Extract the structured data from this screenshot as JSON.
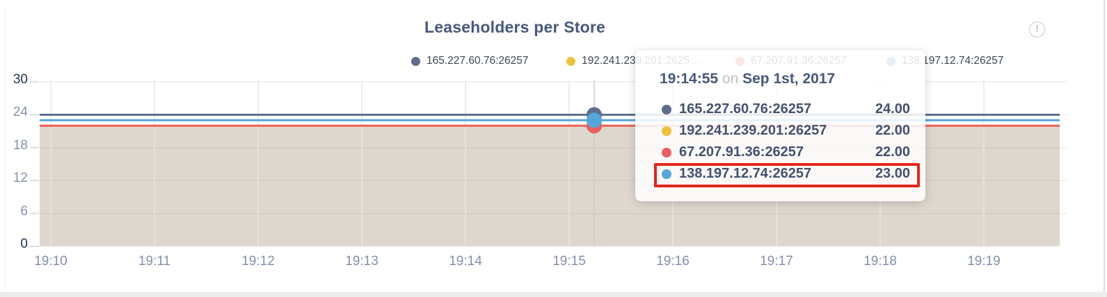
{
  "panel": {
    "title": "Leaseholders per Store",
    "info_icon": "!"
  },
  "legend": {
    "items": [
      {
        "label": "165.227.60.76:26257",
        "color": "#5d6d8d"
      },
      {
        "label": "192.241.239.201:2625…",
        "color": "#eec13d"
      },
      {
        "label": "67.207.91.36:26257",
        "color": "#ea5f5f"
      },
      {
        "label": "138.197.12.74:26257",
        "color": "#55a6da"
      }
    ]
  },
  "tooltip": {
    "time": "19:14:55",
    "on_word": "on",
    "date": "Sep 1st, 2017",
    "highlight_color": "#e5261d",
    "rows": [
      {
        "name": "165.227.60.76:26257",
        "value": "24.00",
        "color": "#5d6d8d",
        "highlighted": false
      },
      {
        "name": "192.241.239.201:26257",
        "value": "22.00",
        "color": "#eec13d",
        "highlighted": false
      },
      {
        "name": "67.207.91.36:26257",
        "value": "22.00",
        "color": "#ea5f5f",
        "highlighted": false
      },
      {
        "name": "138.197.12.74:26257",
        "value": "23.00",
        "color": "#55a6da",
        "highlighted": true
      }
    ]
  },
  "chart_data": {
    "type": "area",
    "title": "Leaseholders per Store",
    "x": [
      "19:10",
      "19:11",
      "19:12",
      "19:13",
      "19:14",
      "19:15",
      "19:16",
      "19:17",
      "19:18",
      "19:19"
    ],
    "y_ticks": [
      0,
      6,
      12,
      18,
      24,
      30
    ],
    "ylim": [
      0,
      30
    ],
    "grid": true,
    "legend_position": "top",
    "fill_color": "#ded7ce",
    "hover_point": {
      "time": "19:14:55",
      "date": "Sep 1st, 2017"
    },
    "series": [
      {
        "name": "165.227.60.76:26257",
        "color": "#5d6d8d",
        "values": [
          24,
          24,
          24,
          24,
          24,
          24,
          24,
          24,
          24,
          24
        ]
      },
      {
        "name": "192.241.239.201:26257",
        "color": "#eec13d",
        "values": [
          22,
          22,
          22,
          22,
          22,
          22,
          22,
          22,
          22,
          22
        ]
      },
      {
        "name": "67.207.91.36:26257",
        "color": "#ea5f5f",
        "values": [
          22,
          22,
          22,
          22,
          22,
          22,
          22,
          22,
          22,
          22
        ]
      },
      {
        "name": "138.197.12.74:26257",
        "color": "#55a6da",
        "values": [
          23,
          23,
          23,
          23,
          23,
          23,
          23,
          23,
          23,
          23
        ]
      }
    ]
  }
}
